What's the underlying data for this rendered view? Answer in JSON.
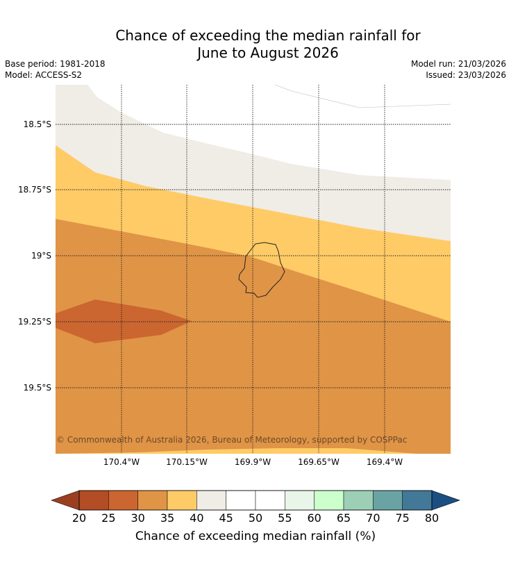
{
  "title": {
    "line1": "Chance of exceeding the median rainfall for",
    "line2": "June to August 2026"
  },
  "meta": {
    "base_period": "Base period: 1981-2018",
    "model": "Model: ACCESS-S2",
    "model_run": "Model run: 21/03/2026",
    "issued": "Issued: 23/03/2026"
  },
  "map": {
    "lat_labels": [
      "18.5°S",
      "18.75°S",
      "19°S",
      "19.25°S",
      "19.5°S"
    ],
    "lon_labels": [
      "170.4°W",
      "170.15°W",
      "169.9°W",
      "169.65°W",
      "169.4°W"
    ],
    "copyright": "© Commonwealth of Australia 2026, Bureau of Meteorology, supported by COSPPac",
    "band_colors": {
      "white": "#ffffff",
      "cream": "#f0ece6",
      "yellow": "#fecb66",
      "orange": "#e09446",
      "dark_orange": "#cb6630"
    }
  },
  "colorbar": {
    "ticks": [
      "20",
      "25",
      "30",
      "35",
      "40",
      "45",
      "50",
      "55",
      "60",
      "65",
      "70",
      "75",
      "80"
    ],
    "under_color": "#9c3f20",
    "over_color": "#1b4f84",
    "colors": [
      "#b24d25",
      "#cb6630",
      "#e09446",
      "#fecb66",
      "#f0ece6",
      "#ffffff",
      "#ffffff",
      "#e9f5e9",
      "#ccffcc",
      "#9dcfb6",
      "#6aa3a3",
      "#427898"
    ],
    "label": "Chance of exceeding median rainfall (%)"
  }
}
